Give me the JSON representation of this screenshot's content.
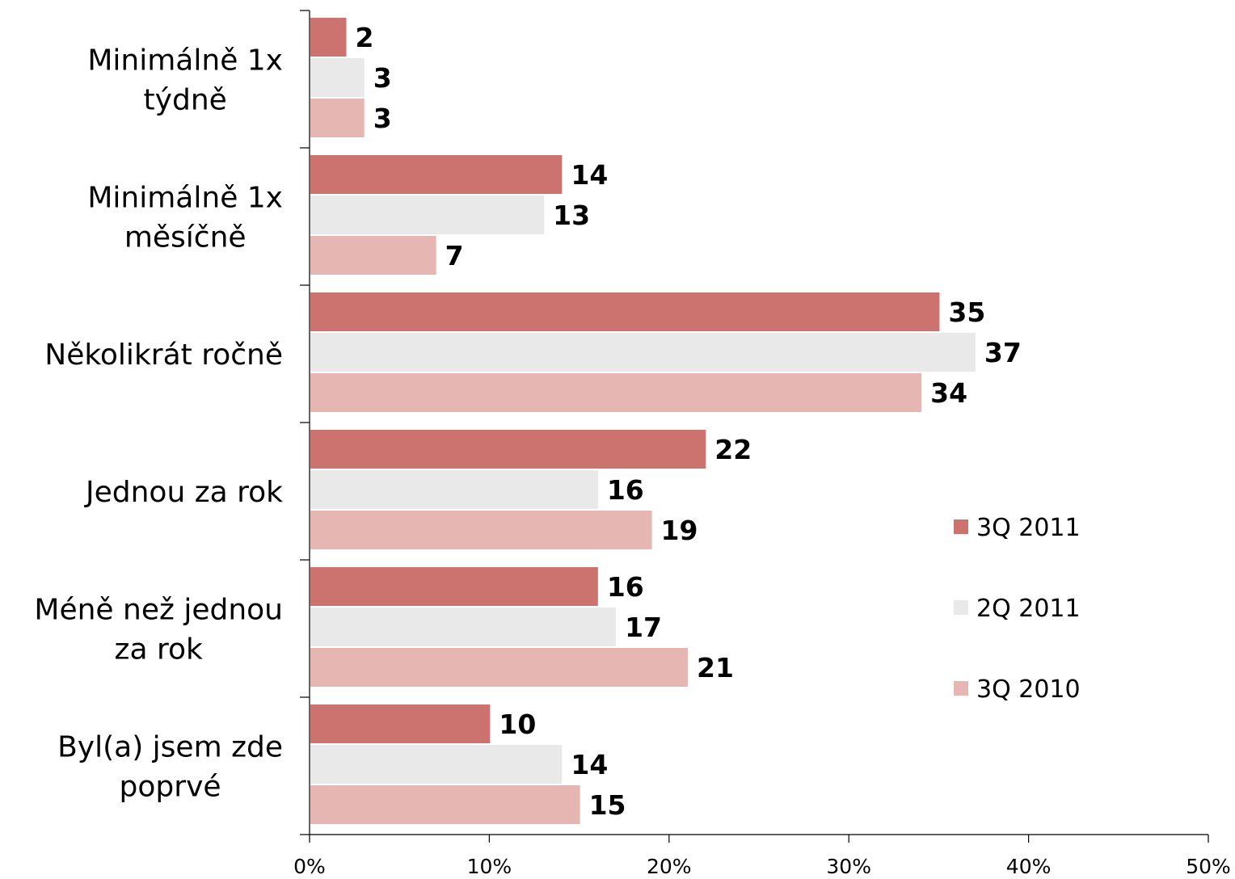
{
  "chart_data": {
    "type": "bar",
    "orientation": "horizontal",
    "categories": [
      [
        "Minimálně 1x",
        "týdně"
      ],
      [
        "Minimálně 1x",
        "měsíčně"
      ],
      [
        "Několikrát ročně"
      ],
      [
        "Jednou za rok"
      ],
      [
        "Méně než jednou",
        "za rok"
      ],
      [
        "Byl(a) jsem zde",
        "poprvé"
      ]
    ],
    "series": [
      {
        "name": "3Q 2011",
        "color": "#cc7370",
        "values": [
          2,
          14,
          35,
          22,
          16,
          10
        ]
      },
      {
        "name": "2Q 2011",
        "color": "#e9e9e9",
        "values": [
          3,
          13,
          37,
          16,
          17,
          14
        ]
      },
      {
        "name": "3Q 2010",
        "color": "#e5b6b2",
        "values": [
          3,
          7,
          34,
          19,
          21,
          15
        ]
      }
    ],
    "data_labels": [
      [
        "2",
        "14",
        "35",
        "22",
        "16",
        "10"
      ],
      [
        "3",
        "13",
        "37",
        "16",
        "17",
        "14"
      ],
      [
        "3",
        "7",
        "34",
        "19",
        "21",
        "15"
      ]
    ],
    "xlim": [
      0,
      50
    ],
    "x_ticks": [
      "0%",
      "10%",
      "20%",
      "30%",
      "40%",
      "50%"
    ],
    "grid": false,
    "legend_position": "right"
  }
}
